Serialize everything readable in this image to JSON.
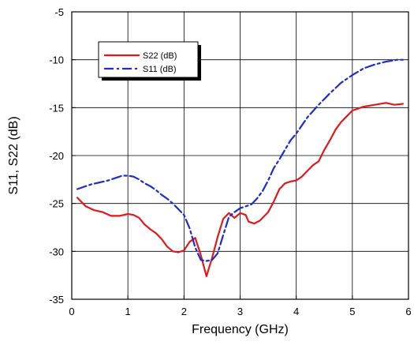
{
  "chart_data": {
    "type": "line",
    "xlabel": "Frequency (GHz)",
    "ylabel": "S11, S22 (dB)",
    "xlim": [
      0,
      6
    ],
    "ylim": [
      -35,
      -5
    ],
    "x_ticks": [
      "0",
      "1",
      "2",
      "3",
      "4",
      "5",
      "6"
    ],
    "y_ticks": [
      "-35",
      "-30",
      "-25",
      "-20",
      "-15",
      "-10",
      "-5"
    ],
    "grid": true,
    "legend_position": "top-left",
    "series": [
      {
        "name": "S22 (dB)",
        "color": "#e0191f",
        "style": "solid",
        "x": [
          0.1,
          0.25,
          0.4,
          0.55,
          0.7,
          0.85,
          1.0,
          1.1,
          1.2,
          1.3,
          1.4,
          1.5,
          1.6,
          1.7,
          1.8,
          1.9,
          2.0,
          2.1,
          2.2,
          2.3,
          2.4,
          2.5,
          2.6,
          2.7,
          2.8,
          2.9,
          3.0,
          3.1,
          3.15,
          3.25,
          3.35,
          3.5,
          3.6,
          3.7,
          3.8,
          3.9,
          4.0,
          4.1,
          4.2,
          4.3,
          4.4,
          4.5,
          4.6,
          4.7,
          4.8,
          4.9,
          5.0,
          5.2,
          5.4,
          5.6,
          5.75,
          5.9
        ],
        "values": [
          -24.4,
          -25.3,
          -25.7,
          -25.9,
          -26.3,
          -26.3,
          -26.1,
          -26.2,
          -26.5,
          -27.2,
          -27.7,
          -28.1,
          -28.7,
          -29.5,
          -30.0,
          -30.1,
          -29.9,
          -29.0,
          -28.6,
          -30.4,
          -32.6,
          -30.7,
          -28.5,
          -26.6,
          -26.0,
          -26.5,
          -26.0,
          -26.2,
          -26.9,
          -27.1,
          -26.8,
          -25.9,
          -24.8,
          -23.5,
          -22.9,
          -22.7,
          -22.6,
          -22.2,
          -21.6,
          -21.0,
          -20.6,
          -19.4,
          -18.4,
          -17.3,
          -16.5,
          -15.9,
          -15.3,
          -14.9,
          -14.7,
          -14.5,
          -14.7,
          -14.6
        ]
      },
      {
        "name": "S11 (dB)",
        "color": "#1f2dc8",
        "style": "dash-dot",
        "x": [
          0.1,
          0.2,
          0.35,
          0.5,
          0.65,
          0.8,
          0.9,
          1.0,
          1.1,
          1.2,
          1.3,
          1.4,
          1.5,
          1.6,
          1.7,
          1.8,
          1.9,
          2.0,
          2.1,
          2.2,
          2.3,
          2.4,
          2.5,
          2.6,
          2.7,
          2.8,
          2.9,
          3.0,
          3.1,
          3.2,
          3.3,
          3.4,
          3.5,
          3.6,
          3.7,
          3.8,
          3.9,
          4.0,
          4.2,
          4.4,
          4.6,
          4.8,
          5.0,
          5.2,
          5.4,
          5.6,
          5.8,
          5.9
        ],
        "values": [
          -23.5,
          -23.3,
          -23.0,
          -22.8,
          -22.6,
          -22.3,
          -22.1,
          -22.1,
          -22.2,
          -22.5,
          -22.9,
          -23.2,
          -23.6,
          -24.1,
          -24.5,
          -25.0,
          -25.6,
          -26.2,
          -27.6,
          -29.6,
          -30.9,
          -31.0,
          -30.9,
          -30.2,
          -28.3,
          -26.4,
          -25.9,
          -25.5,
          -25.3,
          -25.1,
          -24.5,
          -23.7,
          -22.6,
          -21.3,
          -20.4,
          -19.4,
          -18.4,
          -17.7,
          -16.0,
          -14.7,
          -13.5,
          -12.4,
          -11.6,
          -10.9,
          -10.5,
          -10.2,
          -10.0,
          -10.0
        ]
      }
    ]
  }
}
